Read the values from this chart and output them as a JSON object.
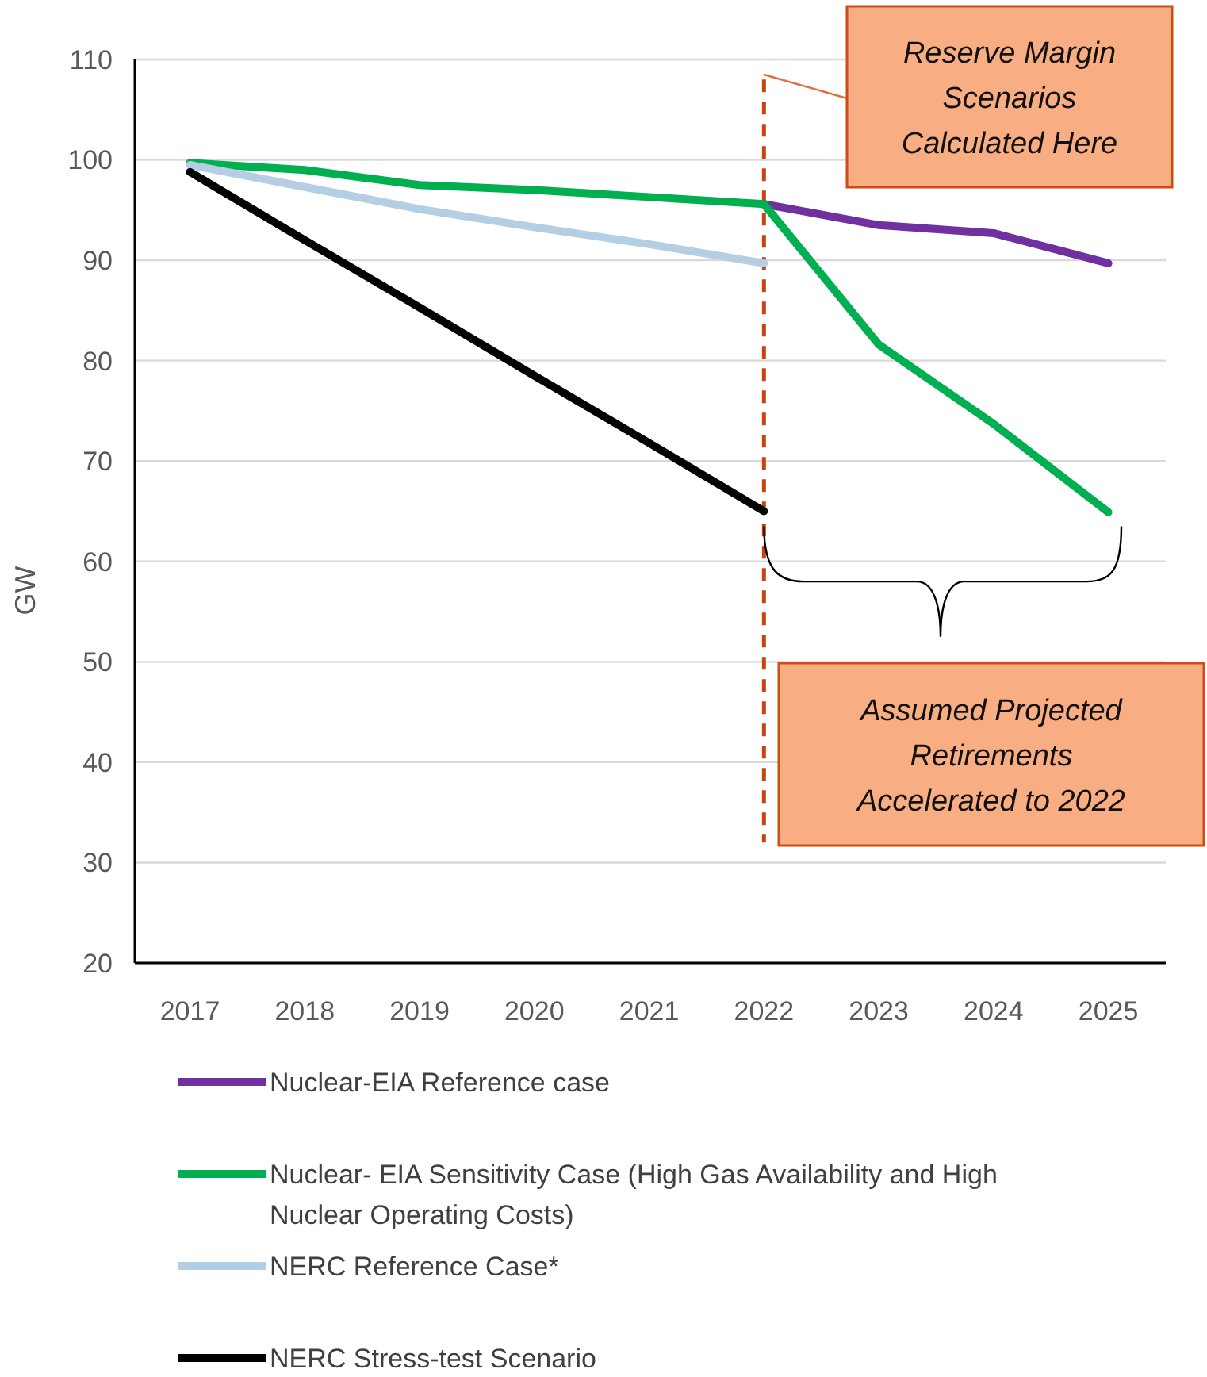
{
  "chart_data": {
    "type": "line",
    "ylabel": "GW",
    "xlim": [
      2016.52,
      2025.5
    ],
    "xticks": [
      2017,
      2018,
      2019,
      2020,
      2021,
      2022,
      2023,
      2024,
      2025
    ],
    "ylim": [
      20,
      110
    ],
    "yticks": [
      20,
      30,
      40,
      50,
      60,
      70,
      80,
      90,
      100,
      110
    ],
    "grid": "y",
    "legend": "bottom",
    "line_style": "solid",
    "marker": "none",
    "series": [
      {
        "name": "Nuclear-EIA Reference case",
        "color": "#7030a0",
        "x": [
          2022,
          2023,
          2024,
          2025
        ],
        "values": [
          95.6,
          93.5,
          92.7,
          89.7
        ]
      },
      {
        "name": "Nuclear- EIA Sensitivity Case (High Gas Availability and High Nuclear Operating Costs)",
        "color": "#00b050",
        "x": [
          2017,
          2018,
          2019,
          2020,
          2021,
          2022,
          2023,
          2024,
          2025
        ],
        "values": [
          99.7,
          99,
          97.5,
          97,
          96.3,
          95.6,
          81.6,
          73.7,
          64.9
        ]
      },
      {
        "name": "NERC Reference Case*",
        "color": "#b4cfe4",
        "x": [
          2017,
          2018,
          2019,
          2020,
          2021,
          2022
        ],
        "values": [
          99.5,
          97.3,
          95.1,
          93.3,
          91.6,
          89.7
        ]
      },
      {
        "name": "NERC Stress-test Scenario",
        "color": "#000000",
        "x": [
          2017,
          2018,
          2019,
          2020,
          2021,
          2022
        ],
        "values": [
          98.8,
          92,
          85.3,
          78.5,
          71.8,
          65
        ]
      }
    ],
    "ref_lines": [
      {
        "axis": "x",
        "value": 2022,
        "color": "#c94310",
        "line_style": "dashed"
      }
    ],
    "annotations": [
      "Reserve Margin Scenarios Calculated Here",
      "Assumed Projected Retirements Accelerated to 2022"
    ]
  }
}
